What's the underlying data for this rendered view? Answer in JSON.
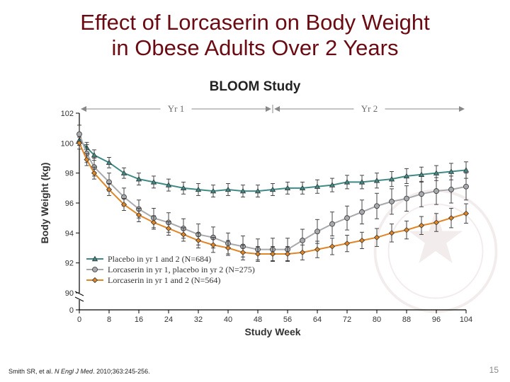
{
  "title_line1": "Effect of Lorcaserin on Body Weight",
  "title_line2": "in Obese Adults Over 2 Years",
  "subtitle": "BLOOM Study",
  "citation_prefix": "Smith SR, et al. ",
  "citation_journal": "N Engl J Med",
  "citation_suffix": ". 2010;363:245-256.",
  "page_number": "15",
  "chart": {
    "type": "line",
    "x_label": "Study Week",
    "y_label": "Body Weight (kg)",
    "year1_label": "Yr 1",
    "year2_label": "Yr 2",
    "xlim": [
      0,
      104
    ],
    "ylim_full": [
      0,
      102
    ],
    "y_break_low": 0,
    "y_break_high": 90,
    "x_ticks": [
      0,
      8,
      16,
      24,
      32,
      40,
      48,
      56,
      64,
      72,
      80,
      88,
      96,
      104
    ],
    "y_ticks": [
      90,
      92,
      94,
      96,
      98,
      100,
      102
    ],
    "zero_tick": 0,
    "tick_fontsize": 11,
    "label_fontsize": 14,
    "background_color": "#ffffff",
    "grid": false,
    "series": [
      {
        "name": "Placebo in yr 1 and 2 (N=684)",
        "color": "#3f8a84",
        "marker": "triangle",
        "line_width": 2,
        "x": [
          0,
          2,
          4,
          8,
          12,
          16,
          20,
          24,
          28,
          32,
          36,
          40,
          44,
          48,
          52,
          56,
          60,
          64,
          68,
          72,
          76,
          80,
          84,
          88,
          92,
          96,
          100,
          104
        ],
        "y": [
          100.2,
          99.7,
          99.2,
          98.7,
          98.0,
          97.6,
          97.4,
          97.2,
          97.0,
          96.9,
          96.8,
          96.9,
          96.8,
          96.8,
          96.9,
          97.0,
          97.0,
          97.1,
          97.2,
          97.4,
          97.4,
          97.5,
          97.6,
          97.8,
          97.9,
          98.0,
          98.1,
          98.2
        ],
        "err": [
          0.35,
          0.35,
          0.35,
          0.35,
          0.35,
          0.4,
          0.4,
          0.4,
          0.4,
          0.4,
          0.4,
          0.4,
          0.4,
          0.4,
          0.4,
          0.4,
          0.4,
          0.45,
          0.45,
          0.45,
          0.45,
          0.5,
          0.5,
          0.5,
          0.5,
          0.5,
          0.55,
          0.55
        ]
      },
      {
        "name": "Lorcaserin in yr 1, placebo in yr 2 (N=275)",
        "color": "#a7a9ac",
        "marker": "circle",
        "line_width": 2,
        "x": [
          0,
          2,
          4,
          8,
          12,
          16,
          20,
          24,
          28,
          32,
          36,
          40,
          44,
          48,
          52,
          56,
          60,
          64,
          68,
          72,
          76,
          80,
          84,
          88,
          92,
          96,
          100,
          104
        ],
        "y": [
          100.6,
          99.3,
          98.4,
          97.4,
          96.4,
          95.6,
          95.0,
          94.7,
          94.3,
          93.9,
          93.7,
          93.3,
          93.1,
          92.9,
          92.9,
          92.9,
          93.5,
          94.1,
          94.6,
          95.0,
          95.4,
          95.8,
          96.1,
          96.3,
          96.6,
          96.8,
          96.9,
          97.1
        ],
        "err": [
          0.6,
          0.6,
          0.6,
          0.6,
          0.6,
          0.6,
          0.65,
          0.65,
          0.65,
          0.7,
          0.7,
          0.7,
          0.7,
          0.7,
          0.75,
          0.75,
          0.75,
          0.8,
          0.8,
          0.8,
          0.8,
          0.85,
          0.85,
          0.85,
          0.85,
          0.9,
          0.9,
          0.9
        ]
      },
      {
        "name": "Lorcaserin in yr 1 and 2 (N=564)",
        "color": "#e08626",
        "marker": "diamond",
        "line_width": 2,
        "x": [
          0,
          2,
          4,
          8,
          12,
          16,
          20,
          24,
          28,
          32,
          36,
          40,
          44,
          48,
          52,
          56,
          60,
          64,
          68,
          72,
          76,
          80,
          84,
          88,
          92,
          96,
          100,
          104
        ],
        "y": [
          100.0,
          98.9,
          98.0,
          96.9,
          95.9,
          95.2,
          94.7,
          94.3,
          93.9,
          93.5,
          93.2,
          93.0,
          92.7,
          92.6,
          92.6,
          92.6,
          92.7,
          92.9,
          93.1,
          93.3,
          93.5,
          93.7,
          94.0,
          94.2,
          94.5,
          94.7,
          95.0,
          95.3
        ],
        "err": [
          0.4,
          0.4,
          0.4,
          0.4,
          0.4,
          0.45,
          0.45,
          0.45,
          0.45,
          0.5,
          0.5,
          0.5,
          0.5,
          0.5,
          0.5,
          0.5,
          0.5,
          0.55,
          0.55,
          0.55,
          0.55,
          0.6,
          0.6,
          0.6,
          0.6,
          0.6,
          0.65,
          0.65
        ]
      }
    ],
    "legend": {
      "x_col1": 0.18,
      "y_top": 0.09,
      "row_h": 0.055
    }
  }
}
